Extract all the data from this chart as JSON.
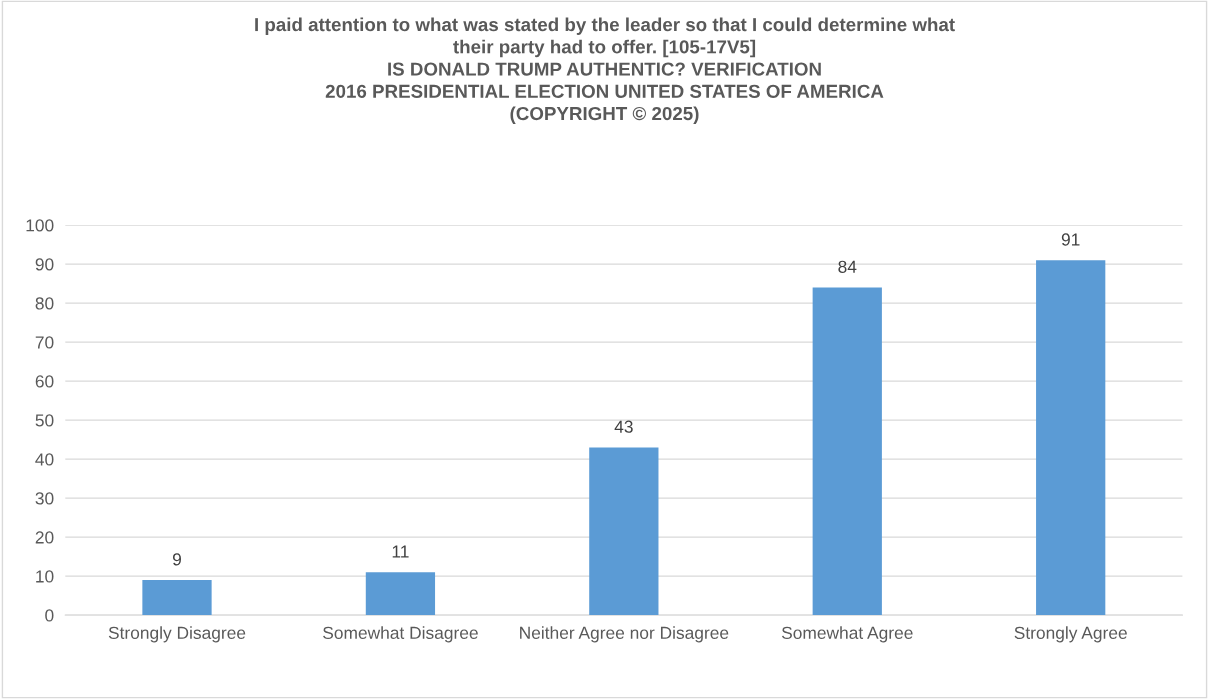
{
  "chart_data": {
    "type": "bar",
    "title": "I paid attention to what was stated by the leader so that I could determine what\ntheir party had to offer. [105-17V5]\nIS DONALD TRUMP AUTHENTIC? VERIFICATION\n2016 PRESIDENTIAL ELECTION UNITED STATES OF AMERICA\n(COPYRIGHT © 2025)",
    "categories": [
      "Strongly Disagree",
      "Somewhat Disagree",
      "Neither Agree nor Disagree",
      "Somewhat Agree",
      "Strongly Agree"
    ],
    "values": [
      9,
      11,
      43,
      84,
      91
    ],
    "color": "#5b9bd5",
    "ylim": [
      0,
      100
    ],
    "yticks": [
      0,
      10,
      20,
      30,
      40,
      50,
      60,
      70,
      80,
      90,
      100
    ],
    "grid": "y",
    "data_labels": true,
    "legend": false
  }
}
